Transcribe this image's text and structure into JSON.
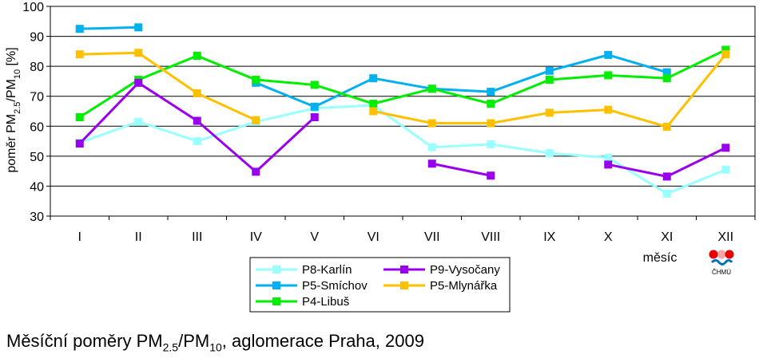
{
  "chart_data": {
    "type": "line",
    "categories": [
      "I",
      "II",
      "III",
      "IV",
      "V",
      "VI",
      "VII",
      "VIII",
      "IX",
      "X",
      "XI",
      "XII"
    ],
    "ylabel_parts": [
      "poměr PM",
      "2.5",
      "/PM",
      "10",
      " [%]"
    ],
    "xlabel": "měsíc",
    "ylim": [
      30,
      100
    ],
    "yticks": [
      30,
      40,
      50,
      60,
      70,
      80,
      90,
      100
    ],
    "grid": true,
    "legend_position": "bottom-center",
    "series": [
      {
        "name": "P8-Karlín",
        "color": "#99ffff",
        "values": [
          54.5,
          61.5,
          55,
          61.5,
          66,
          67,
          53,
          54,
          51,
          49.5,
          37.5,
          45.5
        ]
      },
      {
        "name": "P5-Smíchov",
        "color": "#00b0f0",
        "values": [
          92.5,
          93,
          null,
          74.5,
          66.5,
          76,
          72.5,
          71.5,
          78.5,
          83.8,
          78,
          null
        ]
      },
      {
        "name": "P4-Libuš",
        "color": "#00ee00",
        "values": [
          63,
          75.5,
          83.5,
          75.5,
          73.8,
          67.5,
          72.5,
          67.5,
          75.5,
          77,
          76,
          85.5
        ]
      },
      {
        "name": "P9-Vysočany",
        "color": "#9900ee",
        "values": [
          54.2,
          74.5,
          61.8,
          44.8,
          63,
          null,
          47.5,
          43.5,
          null,
          47.2,
          43.2,
          52.8
        ]
      },
      {
        "name": "P5-Mlynářka",
        "color": "#ffc000",
        "values": [
          84,
          84.5,
          71,
          62,
          null,
          65,
          61,
          61,
          64.5,
          65.5,
          59.8,
          84
        ]
      }
    ],
    "legend_layout": [
      [
        "P8-Karlín",
        "P9-Vysočany"
      ],
      [
        "P5-Smíchov",
        "P5-Mlynářka"
      ],
      [
        "P4-Libuš",
        null
      ]
    ]
  },
  "logo": {
    "text": "ČHMÚ",
    "colors": [
      "#e60000",
      "#0070c0"
    ]
  },
  "caption": {
    "parts": [
      "Měsíční poměry PM",
      "2.5",
      "/PM",
      "10",
      ", aglomerace Praha, 2009"
    ]
  }
}
